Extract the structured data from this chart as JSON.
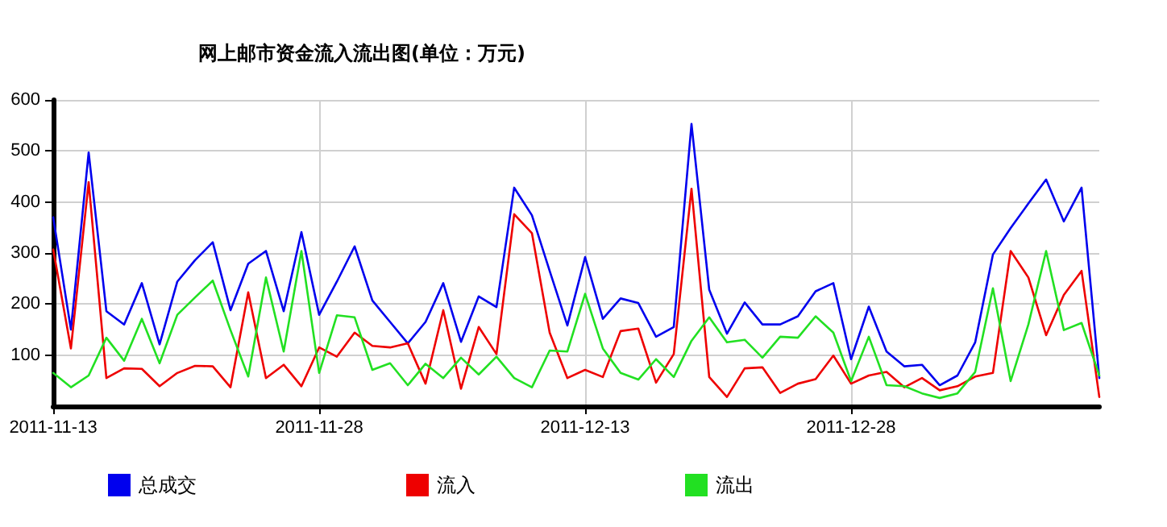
{
  "chart_data": {
    "type": "line",
    "title": "网上邮市资金流入流出图(单位：万元)",
    "x": [
      "2011-11-13",
      "2011-11-14",
      "2011-11-15",
      "2011-11-16",
      "2011-11-17",
      "2011-11-18",
      "2011-11-19",
      "2011-11-20",
      "2011-11-21",
      "2011-11-22",
      "2011-11-23",
      "2011-11-24",
      "2011-11-25",
      "2011-11-26",
      "2011-11-27",
      "2011-11-28",
      "2011-11-29",
      "2011-11-30",
      "2011-12-01",
      "2011-12-02",
      "2011-12-03",
      "2011-12-04",
      "2011-12-05",
      "2011-12-06",
      "2011-12-07",
      "2011-12-08",
      "2011-12-09",
      "2011-12-10",
      "2011-12-11",
      "2011-12-12",
      "2011-12-13",
      "2011-12-14",
      "2011-12-15",
      "2011-12-16",
      "2011-12-17",
      "2011-12-18",
      "2011-12-19",
      "2011-12-20",
      "2011-12-21",
      "2011-12-22",
      "2011-12-23",
      "2011-12-24",
      "2011-12-25",
      "2011-12-26",
      "2011-12-27",
      "2011-12-28",
      "2011-12-29",
      "2011-12-30",
      "2011-12-31",
      "2012-01-01",
      "2012-01-02",
      "2012-01-03",
      "2012-01-04",
      "2012-01-05",
      "2012-01-06",
      "2012-01-07",
      "2012-01-08",
      "2012-01-09",
      "2012-01-10",
      "2012-01-11"
    ],
    "series": [
      {
        "name": "总成交",
        "color": "#0000ee",
        "values": [
          370,
          150,
          497,
          186,
          160,
          241,
          121,
          244,
          286,
          321,
          188,
          279,
          304,
          186,
          341,
          179,
          244,
          313,
          207,
          165,
          123,
          165,
          241,
          126,
          215,
          194,
          428,
          374,
          265,
          158,
          292,
          171,
          211,
          202,
          136,
          155,
          553,
          228,
          142,
          203,
          160,
          160,
          176,
          225,
          241,
          92,
          195,
          107,
          78,
          81,
          41,
          60,
          125,
          297,
          349,
          397,
          444,
          362,
          428,
          55
        ]
      },
      {
        "name": "流入",
        "color": "#ee0000",
        "values": [
          307,
          113,
          439,
          55,
          74,
          73,
          39,
          65,
          79,
          78,
          37,
          223,
          55,
          81,
          39,
          115,
          97,
          144,
          118,
          115,
          123,
          44,
          188,
          34,
          155,
          102,
          376,
          339,
          144,
          55,
          71,
          57,
          147,
          152,
          46,
          102,
          426,
          57,
          18,
          74,
          76,
          26,
          44,
          53,
          99,
          44,
          60,
          67,
          37,
          55,
          31,
          39,
          58,
          65,
          304,
          252,
          139,
          218,
          265,
          18
        ]
      },
      {
        "name": "流出",
        "color": "#22e022",
        "values": [
          65,
          37,
          60,
          134,
          89,
          171,
          84,
          179,
          213,
          246,
          149,
          58,
          252,
          107,
          304,
          65,
          178,
          174,
          71,
          84,
          41,
          83,
          55,
          95,
          62,
          97,
          55,
          37,
          109,
          107,
          220,
          113,
          65,
          52,
          92,
          57,
          128,
          174,
          125,
          130,
          95,
          136,
          134,
          176,
          144,
          49,
          136,
          41,
          39,
          25,
          16,
          25,
          67,
          231,
          49,
          160,
          304,
          149,
          163,
          60
        ]
      }
    ],
    "xlim": [
      "2011-11-13",
      "2012-01-11"
    ],
    "xticks": [
      "2011-11-13",
      "2011-11-28",
      "2011-12-13",
      "2011-12-28"
    ],
    "ylim": [
      0,
      600
    ],
    "yticks": [
      100,
      200,
      300,
      400,
      500,
      600
    ],
    "grid": true,
    "legend": "bottom left",
    "marker": "none",
    "line_style": "solid"
  }
}
